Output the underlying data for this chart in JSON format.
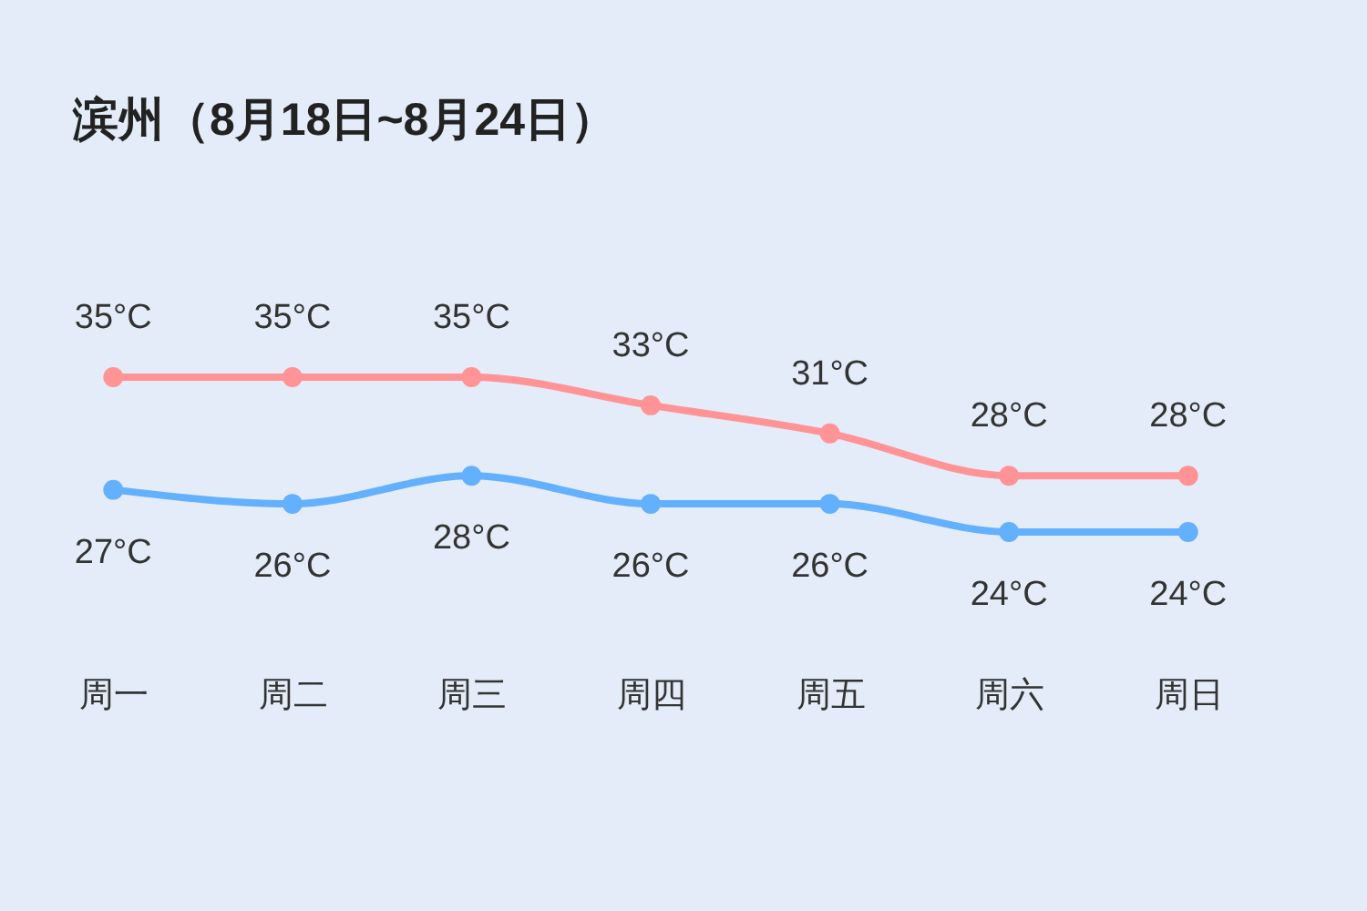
{
  "chart_data": {
    "type": "line",
    "title": "滨州（8月18日~8月24日）",
    "categories": [
      "周一",
      "周二",
      "周三",
      "周四",
      "周五",
      "周六",
      "周日"
    ],
    "series": [
      {
        "color": "#ff9396",
        "values": [
          35,
          35,
          35,
          33,
          31,
          28,
          28
        ],
        "value_labels": [
          "35°C",
          "35°C",
          "35°C",
          "33°C",
          "31°C",
          "28°C",
          "28°C"
        ]
      },
      {
        "color": "#63b0ff",
        "values": [
          27,
          26,
          28,
          26,
          26,
          24,
          24
        ],
        "value_labels": [
          "27°C",
          "26°C",
          "28°C",
          "26°C",
          "26°C",
          "24°C",
          "24°C"
        ]
      }
    ],
    "marker": "circle",
    "line_style": "solid",
    "legend": false,
    "grid": false,
    "tick_labels": "x"
  }
}
